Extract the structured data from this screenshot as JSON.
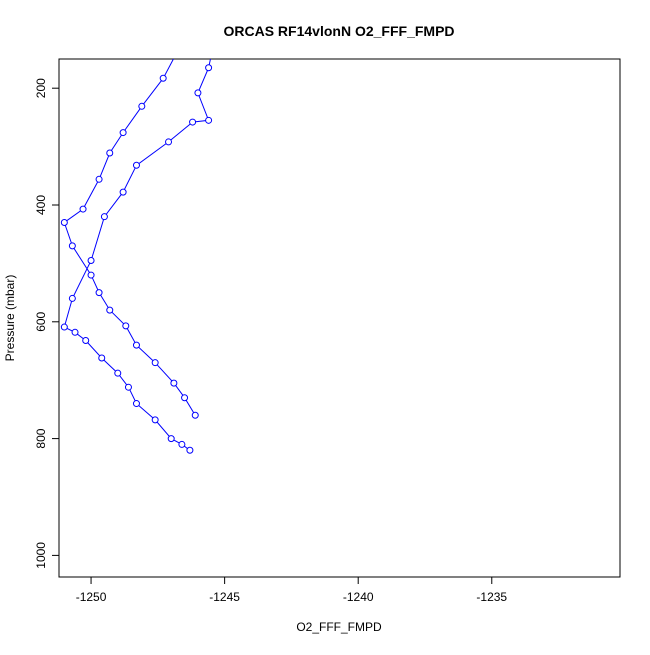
{
  "chart_data": {
    "type": "line",
    "title": "ORCAS RF14vlonN O2_FFF_FMPD",
    "xlabel": "O2_FFF_FMPD",
    "ylabel": "Pressure (mbar)",
    "xlim": [
      -1251.2,
      -1230.2
    ],
    "ylim": [
      1037,
      150
    ],
    "y_inverted": true,
    "grid": false,
    "x_ticks": [
      {
        "value": -1250,
        "label": "-1250"
      },
      {
        "value": -1245,
        "label": "-1245"
      },
      {
        "value": -1240,
        "label": "-1240"
      },
      {
        "value": -1235,
        "label": "-1235"
      }
    ],
    "y_ticks": [
      {
        "value": 200,
        "label": "200"
      },
      {
        "value": 400,
        "label": "400"
      },
      {
        "value": 600,
        "label": "600"
      },
      {
        "value": 800,
        "label": "800"
      },
      {
        "value": 1000,
        "label": "1000"
      }
    ],
    "series_color": "#0000ff",
    "series": [
      {
        "x": [
          -1245.3,
          -1245.6,
          -1246.0,
          -1245.6,
          -1246.2,
          -1247.1,
          -1248.3,
          -1248.8,
          -1249.5,
          -1250.0,
          -1250.7,
          -1251.0,
          -1250.6,
          -1250.2,
          -1249.6,
          -1249.0,
          -1248.6,
          -1248.3,
          -1247.6,
          -1247.0,
          -1246.6,
          -1246.3
        ],
        "y": [
          100,
          165,
          208,
          255,
          258,
          292,
          332,
          378,
          420,
          495,
          560,
          609,
          618,
          632,
          662,
          688,
          712,
          740,
          768,
          800,
          810,
          820
        ]
      },
      {
        "x": [
          -1246.3,
          -1246.8,
          -1247.3,
          -1248.1,
          -1248.8,
          -1249.3,
          -1249.7,
          -1250.3,
          -1251.0,
          -1250.7,
          -1250.0,
          -1249.7,
          -1249.3,
          -1248.7,
          -1248.3,
          -1247.6,
          -1246.9,
          -1246.5,
          -1246.1
        ],
        "y": [
          100,
          140,
          183,
          231,
          276,
          311,
          356,
          407,
          430,
          470,
          520,
          550,
          580,
          607,
          640,
          670,
          705,
          730,
          760
        ]
      }
    ]
  }
}
